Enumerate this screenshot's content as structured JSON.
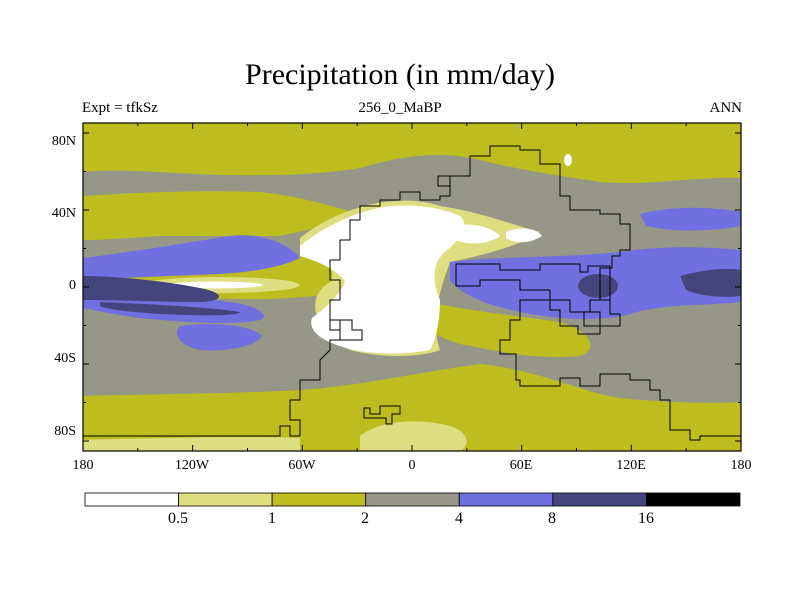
{
  "header": {
    "title": "Precipitation (in mm/day)",
    "left": "Expt = tfkSz",
    "center": "256_0_MaBP",
    "right": "ANN"
  },
  "axes": {
    "lat_labels": [
      "80N",
      "40N",
      "0",
      "40S",
      "80S"
    ],
    "lon_labels": [
      "180",
      "120W",
      "60W",
      "0",
      "60E",
      "120E",
      "180"
    ]
  },
  "colorbar": {
    "levels": [
      "0.5",
      "1",
      "2",
      "4",
      "8",
      "16"
    ],
    "colors": [
      "#ffffff",
      "#dede80",
      "#bdbd1f",
      "#979787",
      "#7070e0",
      "#45457e",
      "#000000"
    ]
  },
  "palette": {
    "white": "#ffffff",
    "pale": "#dede80",
    "olive": "#bdbd1f",
    "gray": "#979787",
    "blue": "#7070e0",
    "dark": "#45457e"
  }
}
